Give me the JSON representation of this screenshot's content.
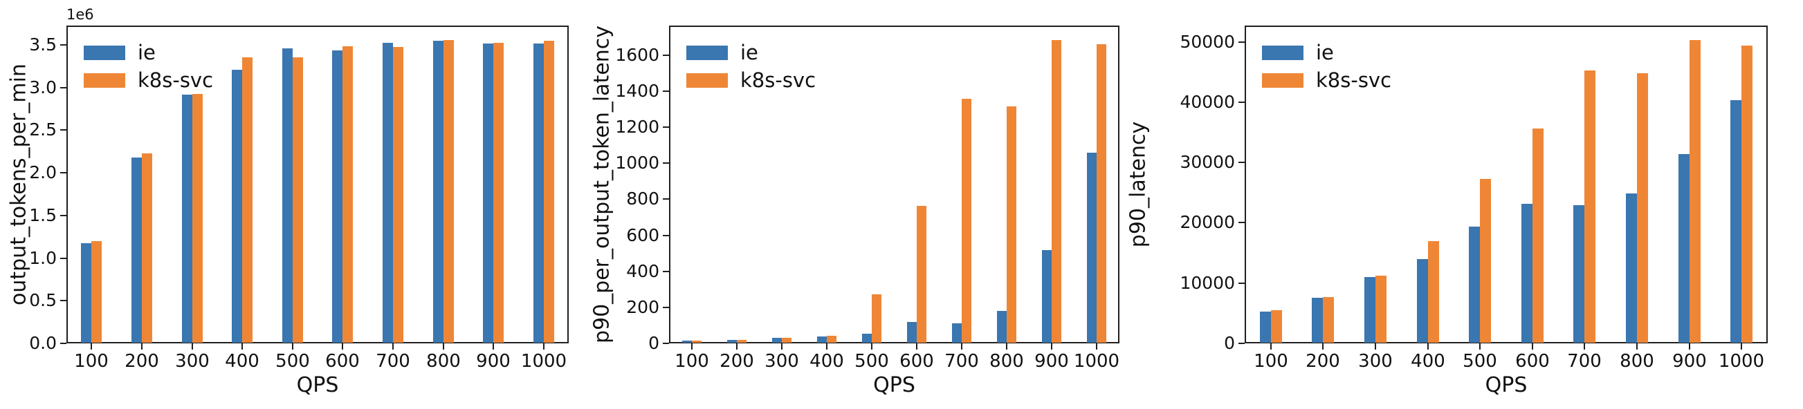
{
  "page": {
    "background_color": "#ffffff",
    "axis_color": "#1f1f1f",
    "text_color": "#111111"
  },
  "legend": {
    "position": "upper left",
    "items": [
      {
        "label": "ie",
        "color": "#3A76AF"
      },
      {
        "label": "k8s-svc",
        "color": "#EF8636"
      }
    ]
  },
  "chart_data": [
    {
      "type": "bar",
      "title": "",
      "ylabel": "output_tokens_per_min",
      "xlabel": "QPS",
      "offset_text": "1e6",
      "grid": false,
      "legend_position": "upper left",
      "categories": [
        "100",
        "200",
        "300",
        "400",
        "500",
        "600",
        "700",
        "800",
        "900",
        "1000"
      ],
      "ylim": [
        0,
        3727500
      ],
      "yticks": {
        "values": [
          0,
          500000,
          1000000,
          1500000,
          2000000,
          2500000,
          3000000,
          3500000
        ],
        "labels": [
          "0.0",
          "0.5",
          "1.0",
          "1.5",
          "2.0",
          "2.5",
          "3.0",
          "3.5"
        ]
      },
      "series": [
        {
          "name": "ie",
          "color": "#3A76AF",
          "values": [
            1170000,
            2170000,
            2910000,
            3200000,
            3450000,
            3430000,
            3520000,
            3545000,
            3510000,
            3505000
          ]
        },
        {
          "name": "k8s-svc",
          "color": "#EF8636",
          "values": [
            1195000,
            2220000,
            2920000,
            3350000,
            3350000,
            3480000,
            3465000,
            3550000,
            3520000,
            3540000
          ]
        }
      ]
    },
    {
      "type": "bar",
      "title": "",
      "ylabel": "p90_per_output_token_latency",
      "xlabel": "QPS",
      "offset_text": "",
      "grid": false,
      "legend_position": "upper left",
      "categories": [
        "100",
        "200",
        "300",
        "400",
        "500",
        "600",
        "700",
        "800",
        "900",
        "1000"
      ],
      "ylim": [
        0,
        1764
      ],
      "yticks": {
        "values": [
          0,
          200,
          400,
          600,
          800,
          1000,
          1200,
          1400,
          1600
        ],
        "labels": [
          "0",
          "200",
          "400",
          "600",
          "800",
          "1000",
          "1200",
          "1400",
          "1600"
        ]
      },
      "series": [
        {
          "name": "ie",
          "color": "#3A76AF",
          "values": [
            10,
            17,
            25,
            33,
            48,
            115,
            107,
            175,
            515,
            1055
          ]
        },
        {
          "name": "k8s-svc",
          "color": "#EF8636",
          "values": [
            10,
            17,
            25,
            38,
            270,
            760,
            1355,
            1310,
            1680,
            1655
          ]
        }
      ]
    },
    {
      "type": "bar",
      "title": "",
      "ylabel": "p90_latency",
      "xlabel": "QPS",
      "offset_text": "",
      "grid": false,
      "legend_position": "upper left",
      "categories": [
        "100",
        "200",
        "300",
        "400",
        "500",
        "600",
        "700",
        "800",
        "900",
        "1000"
      ],
      "ylim": [
        0,
        52710
      ],
      "yticks": {
        "values": [
          0,
          10000,
          20000,
          30000,
          40000,
          50000
        ],
        "labels": [
          "0",
          "10000",
          "20000",
          "30000",
          "40000",
          "50000"
        ]
      },
      "series": [
        {
          "name": "ie",
          "color": "#3A76AF",
          "values": [
            5200,
            7400,
            10900,
            13900,
            19200,
            23000,
            22800,
            24700,
            31300,
            40200
          ]
        },
        {
          "name": "k8s-svc",
          "color": "#EF8636",
          "values": [
            5400,
            7600,
            11100,
            16800,
            27100,
            35500,
            45200,
            44700,
            50200,
            49300
          ]
        }
      ]
    }
  ]
}
